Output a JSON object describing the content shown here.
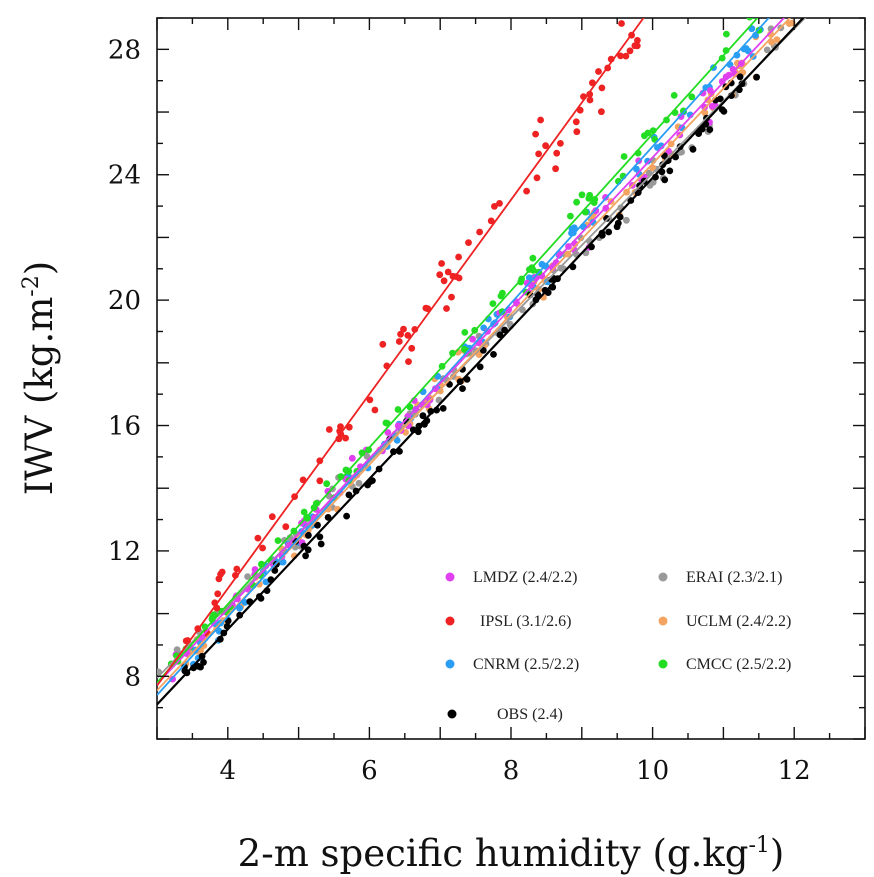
{
  "chart_data": {
    "type": "scatter",
    "title": "",
    "xlabel": {
      "base": "2-m specific humidity (g.kg",
      "sup": "-1",
      "tail": ")"
    },
    "ylabel": {
      "base": "IWV (kg.m",
      "sup": "-2",
      "tail": ")"
    },
    "xlim": [
      3,
      13
    ],
    "ylim": [
      6,
      29
    ],
    "xticks": [
      4,
      6,
      8,
      10,
      12
    ],
    "yticks": [
      8,
      12,
      16,
      20,
      24,
      28
    ],
    "xtick_labels": [
      "4",
      "6",
      "8",
      "10",
      "12"
    ],
    "ytick_labels": [
      "8",
      "12",
      "16",
      "20",
      "24",
      "28"
    ],
    "grid": false,
    "legend_position": "bottom-right",
    "series": [
      {
        "name": "LMDZ (2.4/2.2)",
        "color": "#e040f0",
        "fit": {
          "slope": 2.4,
          "intercept": 0.55
        },
        "x_range": [
          3.2,
          11.3
        ]
      },
      {
        "name": "ERAI (2.3/2.1)",
        "color": "#999999",
        "fit": {
          "slope": 2.3,
          "intercept": 1.05
        },
        "x_range": [
          3.0,
          11.9
        ]
      },
      {
        "name": "IPSL (3.1/2.6)",
        "color": "#ee2222",
        "fit": {
          "slope": 3.1,
          "intercept": -1.6
        },
        "x_range": [
          3.4,
          9.9
        ]
      },
      {
        "name": "UCLM (2.4/2.2)",
        "color": "#f4a460",
        "fit": {
          "slope": 2.4,
          "intercept": 0.35
        },
        "x_range": [
          3.4,
          12.3
        ]
      },
      {
        "name": "CNRM (2.5/2.2)",
        "color": "#2a9df4",
        "fit": {
          "slope": 2.5,
          "intercept": -0.1
        },
        "x_range": [
          3.5,
          12.1
        ]
      },
      {
        "name": "CMCC (2.5/2.2)",
        "color": "#22dd22",
        "fit": {
          "slope": 2.5,
          "intercept": 0.3
        },
        "x_range": [
          3.2,
          11.6
        ]
      },
      {
        "name": "OBS (2.4)",
        "color": "#000000",
        "fit": {
          "slope": 2.4,
          "intercept": -0.1
        },
        "x_range": [
          3.3,
          11.5
        ]
      }
    ]
  }
}
